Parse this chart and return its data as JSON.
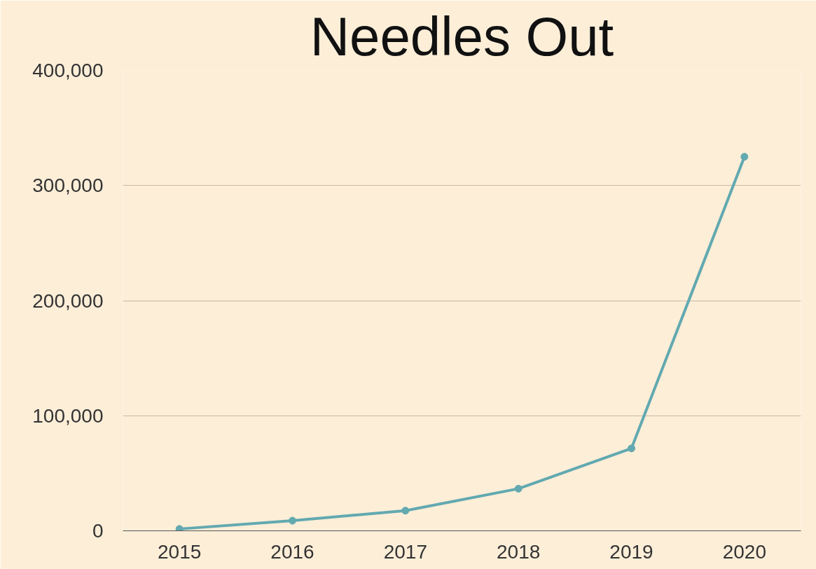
{
  "chart_data": {
    "type": "line",
    "title": "Needles Out",
    "categories": [
      "2015",
      "2016",
      "2017",
      "2018",
      "2019",
      "2020"
    ],
    "series": [
      {
        "color": "#62a9b0",
        "values": [
          1600,
          8800,
          17500,
          36600,
          71600,
          325000
        ]
      }
    ],
    "ylim": [
      0,
      400000
    ],
    "yticks": [
      {
        "value": 0,
        "label": "0"
      },
      {
        "value": 100000,
        "label": "100,000"
      },
      {
        "value": 200000,
        "label": "200,000"
      },
      {
        "value": 300000,
        "label": "300,000"
      },
      {
        "value": 400000,
        "label": "400,000"
      }
    ],
    "grid": "y",
    "marker": "circle",
    "line_style": "solid"
  }
}
